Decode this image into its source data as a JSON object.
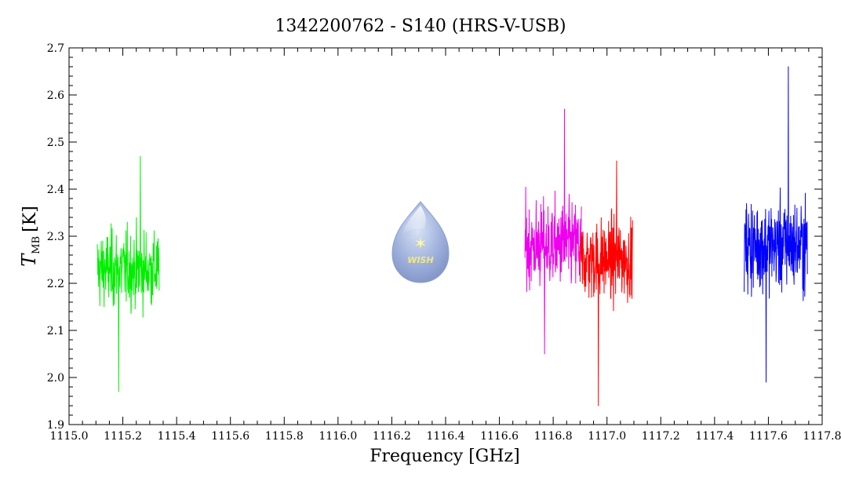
{
  "chart_data": {
    "type": "line",
    "title": "1342200762 - S140 (HRS-V-USB)",
    "xlabel": "Frequency [GHz]",
    "ylabel_main": "T",
    "ylabel_sub": "MB",
    "ylabel_unit": "[K]",
    "xlim": [
      1115.0,
      1117.8
    ],
    "ylim": [
      1.9,
      2.7
    ],
    "xticks": [
      "1115.0",
      "1115.2",
      "1115.4",
      "1115.6",
      "1115.8",
      "1116.0",
      "1116.2",
      "1116.4",
      "1116.6",
      "1116.8",
      "1117.0",
      "1117.2",
      "1117.4",
      "1117.6",
      "1117.8"
    ],
    "yticks": [
      "1.9",
      "2.0",
      "2.1",
      "2.2",
      "2.3",
      "2.4",
      "2.5",
      "2.6",
      "2.7"
    ],
    "grid": false,
    "logo_text": "WISH",
    "series": [
      {
        "color": "#00ee00",
        "x_range": [
          1115.105,
          1115.335
        ],
        "mean": 2.23,
        "noise": 0.075,
        "min": 1.97,
        "max": 2.47
      },
      {
        "color": "#ee00ee",
        "x_range": [
          1116.695,
          1116.905
        ],
        "mean": 2.28,
        "noise": 0.085,
        "min": 2.05,
        "max": 2.57
      },
      {
        "color": "#ff0000",
        "x_range": [
          1116.9,
          1117.095
        ],
        "mean": 2.25,
        "noise": 0.08,
        "min": 1.94,
        "max": 2.46
      },
      {
        "color": "#0000ff",
        "x_range": [
          1117.51,
          1117.745
        ],
        "mean": 2.28,
        "noise": 0.09,
        "min": 1.99,
        "max": 2.66
      }
    ]
  }
}
